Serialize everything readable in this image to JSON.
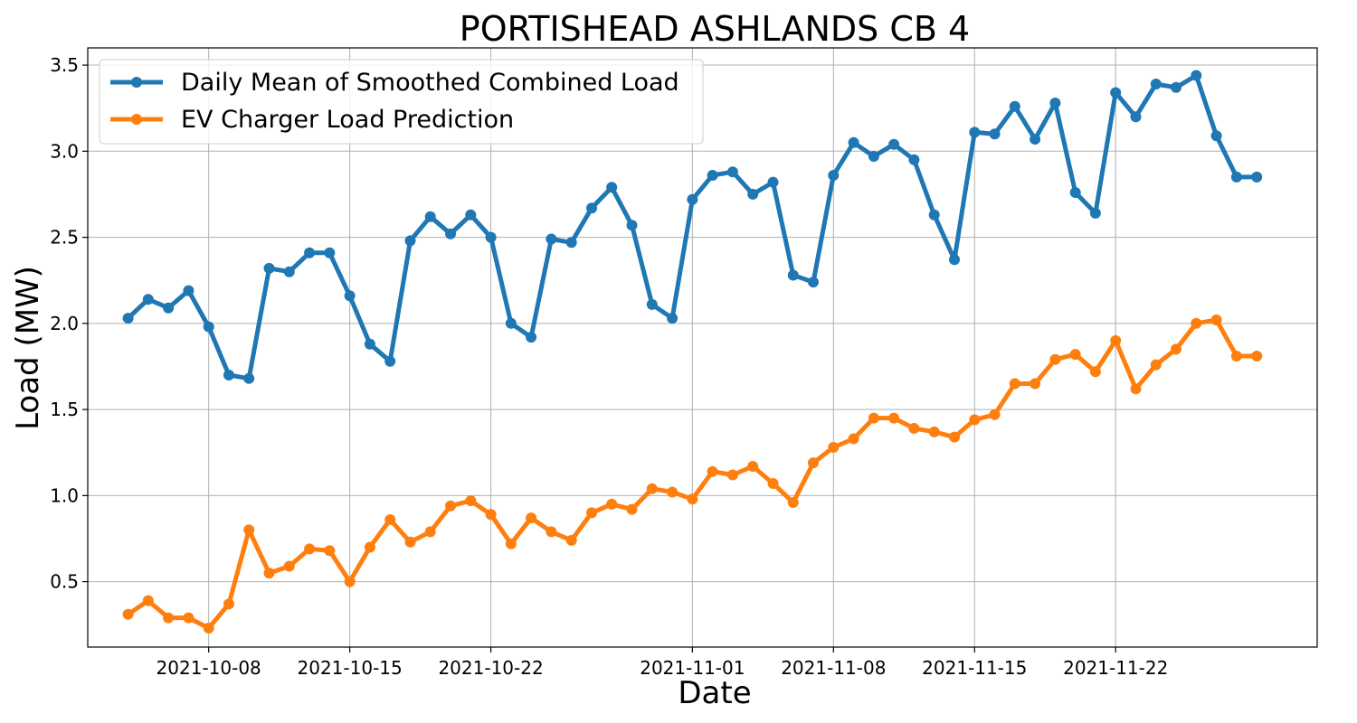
{
  "chart_data": {
    "type": "line",
    "title": "PORTISHEAD ASHLANDS CB 4",
    "xlabel": "Date",
    "ylabel": "Load (MW)",
    "xlim": [
      "2021-10-02",
      "2021-12-02"
    ],
    "ylim": [
      0.12,
      3.6
    ],
    "xticks": [
      "2021-10-08",
      "2021-10-15",
      "2021-10-22",
      "2021-11-01",
      "2021-11-08",
      "2021-11-15",
      "2021-11-22"
    ],
    "yticks": [
      0.5,
      1.0,
      1.5,
      2.0,
      2.5,
      3.0,
      3.5
    ],
    "ytick_labels": [
      "0.5",
      "1.0",
      "1.5",
      "2.0",
      "2.5",
      "3.0",
      "3.5"
    ],
    "grid": true,
    "legend_position": "top-left",
    "x": [
      "2021-10-04",
      "2021-10-05",
      "2021-10-06",
      "2021-10-07",
      "2021-10-08",
      "2021-10-09",
      "2021-10-10",
      "2021-10-11",
      "2021-10-12",
      "2021-10-13",
      "2021-10-14",
      "2021-10-15",
      "2021-10-16",
      "2021-10-17",
      "2021-10-18",
      "2021-10-19",
      "2021-10-20",
      "2021-10-21",
      "2021-10-22",
      "2021-10-23",
      "2021-10-24",
      "2021-10-25",
      "2021-10-26",
      "2021-10-27",
      "2021-10-28",
      "2021-10-29",
      "2021-10-30",
      "2021-10-31",
      "2021-11-01",
      "2021-11-02",
      "2021-11-03",
      "2021-11-04",
      "2021-11-05",
      "2021-11-06",
      "2021-11-07",
      "2021-11-08",
      "2021-11-09",
      "2021-11-10",
      "2021-11-11",
      "2021-11-12",
      "2021-11-13",
      "2021-11-14",
      "2021-11-15",
      "2021-11-16",
      "2021-11-17",
      "2021-11-18",
      "2021-11-19",
      "2021-11-20",
      "2021-11-21",
      "2021-11-22",
      "2021-11-23",
      "2021-11-24",
      "2021-11-25",
      "2021-11-26",
      "2021-11-27",
      "2021-11-28",
      "2021-11-29"
    ],
    "series": [
      {
        "name": "Daily Mean of Smoothed Combined Load",
        "color": "#1f77b4",
        "values": [
          2.03,
          2.14,
          2.09,
          2.19,
          1.98,
          1.7,
          1.68,
          2.32,
          2.3,
          2.41,
          2.41,
          2.16,
          1.88,
          1.78,
          2.48,
          2.62,
          2.52,
          2.63,
          2.5,
          2.0,
          1.92,
          2.49,
          2.47,
          2.67,
          2.79,
          2.57,
          2.11,
          2.03,
          2.72,
          2.86,
          2.88,
          2.75,
          2.82,
          2.28,
          2.24,
          2.86,
          3.05,
          2.97,
          3.04,
          2.95,
          2.63,
          2.37,
          3.11,
          3.1,
          3.26,
          3.07,
          3.28,
          2.76,
          2.64,
          3.34,
          3.2,
          3.39,
          3.37,
          3.44,
          3.09,
          2.85,
          2.85
        ]
      },
      {
        "name": "EV Charger Load Prediction",
        "color": "#ff7f0e",
        "values": [
          0.31,
          0.39,
          0.29,
          0.29,
          0.23,
          0.37,
          0.8,
          0.55,
          0.59,
          0.69,
          0.68,
          0.5,
          0.7,
          0.86,
          0.73,
          0.79,
          0.94,
          0.97,
          0.89,
          0.72,
          0.87,
          0.79,
          0.74,
          0.9,
          0.95,
          0.92,
          1.04,
          1.02,
          0.98,
          1.14,
          1.12,
          1.17,
          1.07,
          0.96,
          1.19,
          1.28,
          1.33,
          1.45,
          1.45,
          1.39,
          1.37,
          1.34,
          1.44,
          1.47,
          1.65,
          1.65,
          1.79,
          1.82,
          1.72,
          1.9,
          1.62,
          1.76,
          1.85,
          2.0,
          2.02,
          1.81,
          1.81
        ]
      }
    ]
  }
}
